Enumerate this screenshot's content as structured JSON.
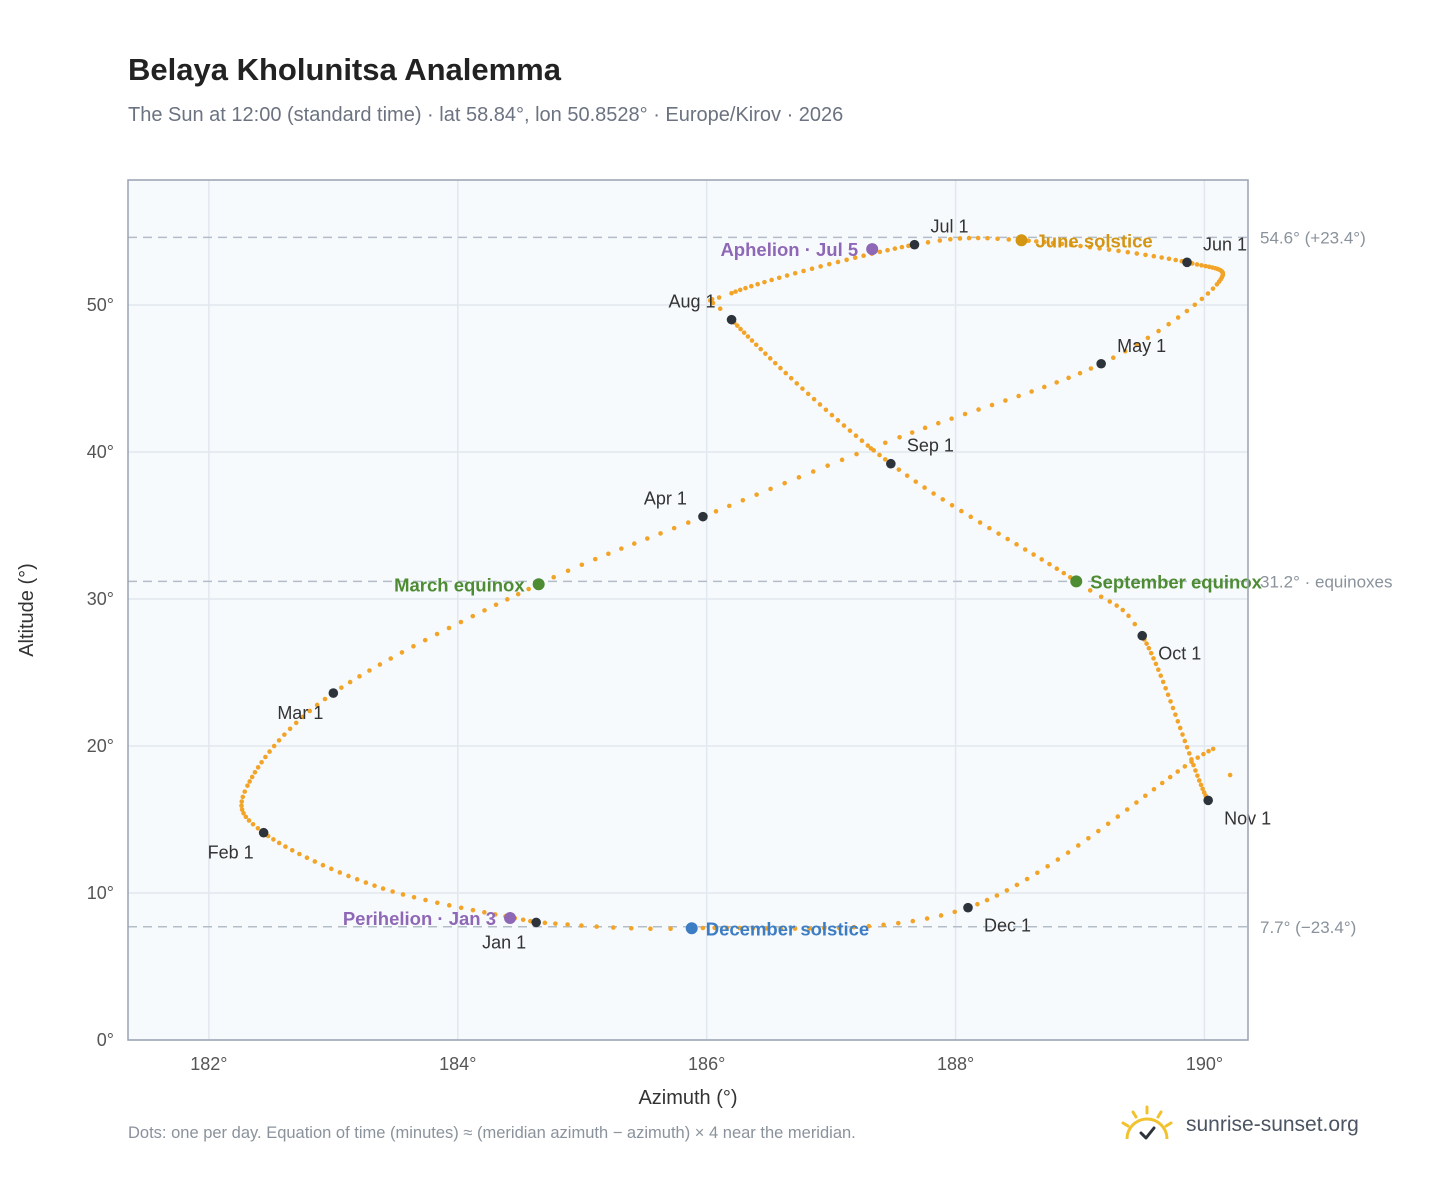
{
  "title": "Belaya Kholunitsa Analemma",
  "subtitle": "The Sun at 12:00 (standard time) · lat 58.84°, lon 50.8528° · Europe/Kirov · 2026",
  "footnote": "Dots: one per day. Equation of time (minutes) ≈ (meridian azimuth − azimuth) × 4 near the meridian.",
  "brand": {
    "name": "sunrise-sunset.org",
    "icon": "sun-logo-icon"
  },
  "colors": {
    "path": "#f2a428",
    "month_marker": "#2d333b",
    "equinox": "#4e8c34",
    "june_solstice": "#d39512",
    "december_solstice": "#3c7dc4",
    "apsis": "#8e67b6",
    "reference_line": "#b3bdc8",
    "plot_bg": "#f7fafd",
    "grid": "#e2e8ef"
  },
  "chart_data": {
    "type": "scatter",
    "title": "Belaya Kholunitsa Analemma",
    "xlabel": "Azimuth (°)",
    "ylabel": "Altitude (°)",
    "xlim": [
      181.35,
      190.35
    ],
    "ylim": [
      0,
      58.5
    ],
    "x_ticks": [
      182,
      184,
      186,
      188,
      190
    ],
    "y_ticks": [
      0,
      10,
      20,
      30,
      40,
      50
    ],
    "x_tick_suffix": "°",
    "y_tick_suffix": "°",
    "grid": true,
    "series": [
      {
        "type": "line-dots",
        "anchors": [
          {
            "date": "2026-01-01",
            "az": 184.63,
            "alt": 8.0
          },
          {
            "date": "2026-01-16",
            "az": 183.4,
            "alt": 10.3
          },
          {
            "date": "2026-02-01",
            "az": 182.44,
            "alt": 14.1
          },
          {
            "date": "2026-02-12",
            "az": 182.31,
            "alt": 17.3
          },
          {
            "date": "2026-03-01",
            "az": 183.0,
            "alt": 23.6
          },
          {
            "date": "2026-03-20",
            "az": 184.65,
            "alt": 31.0
          },
          {
            "date": "2026-04-01",
            "az": 185.97,
            "alt": 35.6
          },
          {
            "date": "2026-04-15",
            "az": 187.55,
            "alt": 41.0
          },
          {
            "date": "2026-05-01",
            "az": 189.17,
            "alt": 46.0
          },
          {
            "date": "2026-05-14",
            "az": 190.1,
            "alt": 51.4
          },
          {
            "date": "2026-06-01",
            "az": 189.86,
            "alt": 52.9
          },
          {
            "date": "2026-06-21",
            "az": 188.53,
            "alt": 54.4
          },
          {
            "date": "2026-07-01",
            "az": 187.67,
            "alt": 54.1
          },
          {
            "date": "2026-07-26",
            "az": 186.2,
            "alt": 50.8
          },
          {
            "date": "2026-08-01",
            "az": 186.2,
            "alt": 49.0
          },
          {
            "date": "2026-09-01",
            "az": 187.48,
            "alt": 39.2
          },
          {
            "date": "2026-09-23",
            "az": 188.97,
            "alt": 31.2
          },
          {
            "date": "2026-10-01",
            "az": 189.5,
            "alt": 27.5
          },
          {
            "date": "2026-11-03",
            "az": 190.07,
            "alt": 19.8
          },
          {
            "date": "2026-11-01",
            "az": 190.03,
            "alt": 16.3
          },
          {
            "date": "2026-12-01",
            "az": 188.1,
            "alt": 9.0
          },
          {
            "date": "2026-12-21",
            "az": 185.88,
            "alt": 7.6
          },
          {
            "date": "2026-12-31",
            "az": 184.63,
            "alt": 8.0
          }
        ]
      }
    ],
    "month_markers": [
      {
        "label": "Jan 1",
        "az": 184.63,
        "alt": 8.0,
        "pos": "below-left"
      },
      {
        "label": "Feb 1",
        "az": 182.44,
        "alt": 14.1,
        "pos": "below-left"
      },
      {
        "label": "Mar 1",
        "az": 183.0,
        "alt": 23.6,
        "pos": "below-left"
      },
      {
        "label": "Apr 1",
        "az": 185.97,
        "alt": 35.6,
        "pos": "above-left"
      },
      {
        "label": "May 1",
        "az": 189.17,
        "alt": 46.0,
        "pos": "above-right"
      },
      {
        "label": "Jun 1",
        "az": 189.86,
        "alt": 52.9,
        "pos": "above-right"
      },
      {
        "label": "Jul 1",
        "az": 187.67,
        "alt": 54.1,
        "pos": "above-right"
      },
      {
        "label": "Aug 1",
        "az": 186.2,
        "alt": 49.0,
        "pos": "above-left"
      },
      {
        "label": "Sep 1",
        "az": 187.48,
        "alt": 39.2,
        "pos": "above-right"
      },
      {
        "label": "Oct 1",
        "az": 189.5,
        "alt": 27.5,
        "pos": "below-right"
      },
      {
        "label": "Nov 1",
        "az": 190.03,
        "alt": 16.3,
        "pos": "below-right"
      },
      {
        "label": "Dec 1",
        "az": 188.1,
        "alt": 9.0,
        "pos": "below-right"
      }
    ],
    "events": [
      {
        "label": "June solstice",
        "az": 188.53,
        "alt": 54.4,
        "color_key": "june_solstice",
        "side": "right"
      },
      {
        "label": "December solstice",
        "az": 185.88,
        "alt": 7.6,
        "color_key": "december_solstice",
        "side": "right"
      },
      {
        "label": "March equinox",
        "az": 184.65,
        "alt": 31.0,
        "color_key": "equinox",
        "side": "left"
      },
      {
        "label": "September equinox",
        "az": 188.97,
        "alt": 31.2,
        "color_key": "equinox",
        "side": "right"
      },
      {
        "label": "Aphelion · Jul 5",
        "az": 187.33,
        "alt": 53.8,
        "color_key": "apsis",
        "side": "left"
      },
      {
        "label": "Perihelion · Jan 3",
        "az": 184.42,
        "alt": 8.3,
        "color_key": "apsis",
        "side": "left"
      }
    ],
    "reference_lines": [
      {
        "alt": 54.6,
        "label": "54.6° (+23.4°)"
      },
      {
        "alt": 31.2,
        "label": "31.2° · equinoxes"
      },
      {
        "alt": 7.7,
        "label": "7.7° (−23.4°)"
      }
    ]
  }
}
